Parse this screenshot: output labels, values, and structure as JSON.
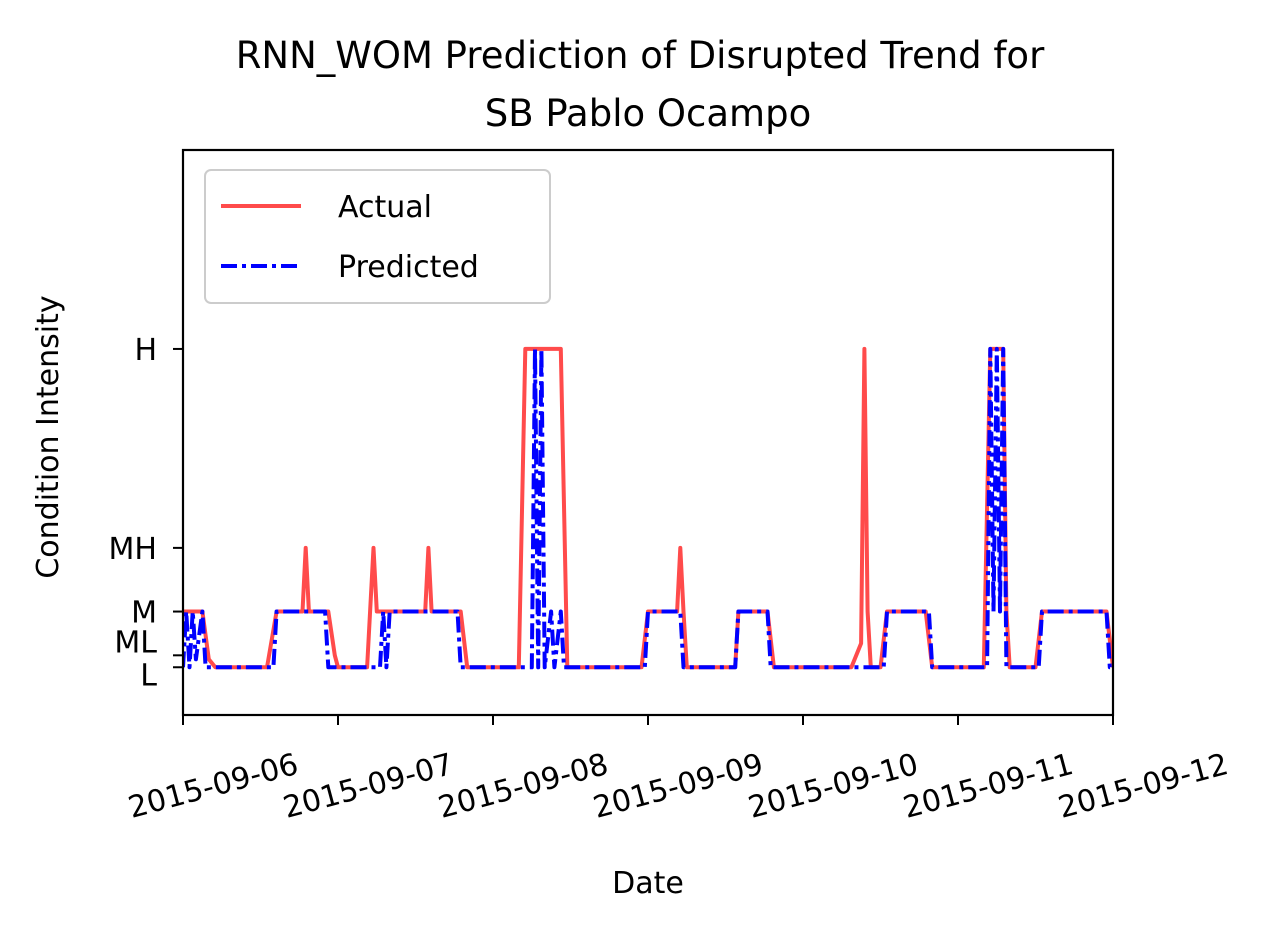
{
  "chart_data": {
    "type": "line",
    "title_line1": "RNN_WOM Prediction of Disrupted Trend for",
    "title_line2": "SB Pablo Ocampo",
    "xlabel": "Date",
    "ylabel": "Condition Intensity",
    "x_ticks": [
      "2015-09-06",
      "2015-09-07",
      "2015-09-08",
      "2015-09-09",
      "2015-09-10",
      "2015-09-11",
      "2015-09-12"
    ],
    "x_range": [
      "2015-09-06",
      "2015-09-12"
    ],
    "y_ticks": [
      {
        "label": "H",
        "value": 4
      },
      {
        "label": "MH",
        "value": 1.5
      },
      {
        "label": "M",
        "value": 0.7
      },
      {
        "label": "ML",
        "value": 0.15
      },
      {
        "label": "L",
        "value": 0
      }
    ],
    "ylim": [
      -0.6,
      6.5
    ],
    "grid": false,
    "legend_position": "upper left",
    "series": [
      {
        "name": "Actual",
        "color": "#ff4b4b",
        "style": "solid",
        "points": [
          [
            "2015-09-06 00:00",
            0.7
          ],
          [
            "2015-09-06 03:00",
            0.7
          ],
          [
            "2015-09-06 04:00",
            0.1
          ],
          [
            "2015-09-06 05:00",
            0
          ],
          [
            "2015-09-06 13:00",
            0
          ],
          [
            "2015-09-06 14:30",
            0.7
          ],
          [
            "2015-09-06 18:30",
            0.7
          ],
          [
            "2015-09-06 19:00",
            1.5
          ],
          [
            "2015-09-06 19:30",
            0.7
          ],
          [
            "2015-09-06 22:30",
            0.7
          ],
          [
            "2015-09-06 23:30",
            0.15
          ],
          [
            "2015-09-07 00:00",
            0
          ],
          [
            "2015-09-07 04:30",
            0
          ],
          [
            "2015-09-07 05:30",
            1.5
          ],
          [
            "2015-09-07 06:00",
            0.7
          ],
          [
            "2015-09-07 13:30",
            0.7
          ],
          [
            "2015-09-07 14:00",
            1.5
          ],
          [
            "2015-09-07 14:30",
            0.7
          ],
          [
            "2015-09-07 19:00",
            0.7
          ],
          [
            "2015-09-07 20:00",
            0
          ],
          [
            "2015-09-08 04:00",
            0
          ],
          [
            "2015-09-08 05:00",
            4
          ],
          [
            "2015-09-08 10:30",
            4
          ],
          [
            "2015-09-08 11:30",
            0
          ],
          [
            "2015-09-08 23:00",
            0
          ],
          [
            "2015-09-09 00:00",
            0.7
          ],
          [
            "2015-09-09 04:30",
            0.7
          ],
          [
            "2015-09-09 05:00",
            1.5
          ],
          [
            "2015-09-09 05:30",
            0.7
          ],
          [
            "2015-09-09 06:00",
            0
          ],
          [
            "2015-09-09 13:30",
            0
          ],
          [
            "2015-09-09 14:00",
            0.7
          ],
          [
            "2015-09-09 18:30",
            0.7
          ],
          [
            "2015-09-09 19:30",
            0
          ],
          [
            "2015-09-10 07:30",
            0
          ],
          [
            "2015-09-10 09:00",
            0.3
          ],
          [
            "2015-09-10 09:30",
            4
          ],
          [
            "2015-09-10 10:00",
            0.7
          ],
          [
            "2015-09-10 10:30",
            0
          ],
          [
            "2015-09-10 12:00",
            0
          ],
          [
            "2015-09-10 13:00",
            0.7
          ],
          [
            "2015-09-10 19:00",
            0.7
          ],
          [
            "2015-09-10 20:00",
            0
          ],
          [
            "2015-09-11 04:00",
            0
          ],
          [
            "2015-09-11 05:00",
            4
          ],
          [
            "2015-09-11 07:00",
            4
          ],
          [
            "2015-09-11 07:30",
            0.7
          ],
          [
            "2015-09-11 08:00",
            0
          ],
          [
            "2015-09-11 12:00",
            0
          ],
          [
            "2015-09-11 13:00",
            0.7
          ],
          [
            "2015-09-11 23:00",
            0.7
          ],
          [
            "2015-09-12 00:00",
            0
          ]
        ]
      },
      {
        "name": "Predicted",
        "color": "#0000ff",
        "style": "dashdot",
        "points": [
          [
            "2015-09-06 00:00",
            0
          ],
          [
            "2015-09-06 00:30",
            0.7
          ],
          [
            "2015-09-06 01:00",
            0
          ],
          [
            "2015-09-06 01:30",
            0.7
          ],
          [
            "2015-09-06 02:00",
            0.1
          ],
          [
            "2015-09-06 03:00",
            0.7
          ],
          [
            "2015-09-06 03:30",
            0
          ],
          [
            "2015-09-06 14:00",
            0
          ],
          [
            "2015-09-06 14:30",
            0.7
          ],
          [
            "2015-09-06 22:00",
            0.7
          ],
          [
            "2015-09-06 22:30",
            0
          ],
          [
            "2015-09-07 06:30",
            0
          ],
          [
            "2015-09-07 07:00",
            0.7
          ],
          [
            "2015-09-07 07:30",
            0
          ],
          [
            "2015-09-07 08:00",
            0.7
          ],
          [
            "2015-09-07 18:30",
            0.7
          ],
          [
            "2015-09-07 19:00",
            0
          ],
          [
            "2015-09-08 06:00",
            0
          ],
          [
            "2015-09-08 06:30",
            4
          ],
          [
            "2015-09-08 07:00",
            0
          ],
          [
            "2015-09-08 07:30",
            4
          ],
          [
            "2015-09-08 08:00",
            0
          ],
          [
            "2015-09-08 09:00",
            0.7
          ],
          [
            "2015-09-08 09:30",
            0
          ],
          [
            "2015-09-08 10:30",
            0.7
          ],
          [
            "2015-09-08 11:00",
            0
          ],
          [
            "2015-09-08 23:30",
            0
          ],
          [
            "2015-09-09 00:00",
            0.7
          ],
          [
            "2015-09-09 05:00",
            0.7
          ],
          [
            "2015-09-09 05:30",
            0
          ],
          [
            "2015-09-09 13:30",
            0
          ],
          [
            "2015-09-09 14:00",
            0.7
          ],
          [
            "2015-09-09 18:30",
            0.7
          ],
          [
            "2015-09-09 19:00",
            0
          ],
          [
            "2015-09-10 12:30",
            0
          ],
          [
            "2015-09-10 13:00",
            0.7
          ],
          [
            "2015-09-10 19:30",
            0.7
          ],
          [
            "2015-09-10 20:00",
            0
          ],
          [
            "2015-09-11 04:30",
            0
          ],
          [
            "2015-09-11 05:00",
            4
          ],
          [
            "2015-09-11 05:30",
            0.7
          ],
          [
            "2015-09-11 06:00",
            4
          ],
          [
            "2015-09-11 06:30",
            0.7
          ],
          [
            "2015-09-11 07:00",
            4
          ],
          [
            "2015-09-11 07:30",
            0
          ],
          [
            "2015-09-11 12:30",
            0
          ],
          [
            "2015-09-11 13:00",
            0.7
          ],
          [
            "2015-09-11 23:00",
            0.7
          ],
          [
            "2015-09-11 23:30",
            0
          ],
          [
            "2015-09-12 00:00",
            0
          ]
        ]
      }
    ]
  }
}
